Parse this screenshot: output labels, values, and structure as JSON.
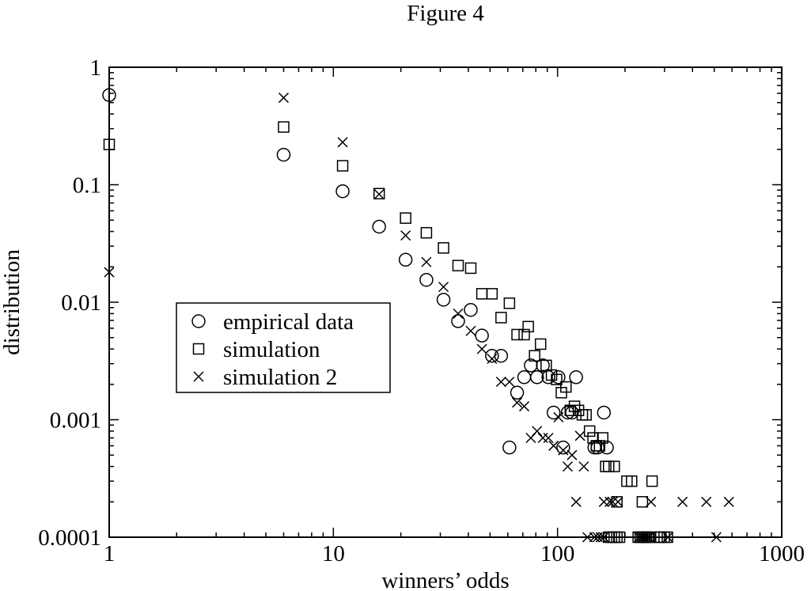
{
  "chart_data": {
    "type": "scatter",
    "title": "Figure 4",
    "xlabel": "winners’ odds",
    "ylabel": "distribution",
    "xscale": "log",
    "yscale": "log",
    "xlim": [
      1,
      1000
    ],
    "ylim": [
      0.0001,
      1
    ],
    "x_ticks": [
      {
        "value": 1,
        "label": "1"
      },
      {
        "value": 10,
        "label": "10"
      },
      {
        "value": 100,
        "label": "100"
      },
      {
        "value": 1000,
        "label": "1000"
      }
    ],
    "y_ticks": [
      {
        "value": 0.0001,
        "label": "0.0001"
      },
      {
        "value": 0.001,
        "label": "0.001"
      },
      {
        "value": 0.01,
        "label": "0.01"
      },
      {
        "value": 0.1,
        "label": "0.1"
      },
      {
        "value": 1,
        "label": "1"
      }
    ],
    "grid": false,
    "legend": {
      "placement": "center-left",
      "boxed": true
    },
    "series": [
      {
        "name": "empirical data",
        "marker": "circle",
        "points": [
          [
            1,
            0.58
          ],
          [
            6,
            0.18
          ],
          [
            11,
            0.088
          ],
          [
            16,
            0.044
          ],
          [
            21,
            0.023
          ],
          [
            26,
            0.0155
          ],
          [
            31,
            0.0105
          ],
          [
            36,
            0.0069
          ],
          [
            41,
            0.0086
          ],
          [
            46,
            0.0052
          ],
          [
            51,
            0.0035
          ],
          [
            56,
            0.0035
          ],
          [
            61,
            0.00058
          ],
          [
            66,
            0.0017
          ],
          [
            71,
            0.0023
          ],
          [
            76,
            0.0029
          ],
          [
            81,
            0.0023
          ],
          [
            86,
            0.0029
          ],
          [
            91,
            0.0023
          ],
          [
            96,
            0.00115
          ],
          [
            101,
            0.0023
          ],
          [
            106,
            0.00058
          ],
          [
            111,
            0.00115
          ],
          [
            116,
            0.00115
          ],
          [
            121,
            0.0023
          ],
          [
            146,
            0.00058
          ],
          [
            151,
            0.00058
          ],
          [
            161,
            0.00115
          ],
          [
            166,
            0.00058
          ]
        ]
      },
      {
        "name": "simulation",
        "marker": "square",
        "points": [
          [
            1,
            0.22
          ],
          [
            6,
            0.31
          ],
          [
            11,
            0.145
          ],
          [
            16,
            0.084
          ],
          [
            21,
            0.052
          ],
          [
            26,
            0.039
          ],
          [
            31,
            0.029
          ],
          [
            36,
            0.0205
          ],
          [
            41,
            0.0195
          ],
          [
            46,
            0.0118
          ],
          [
            51,
            0.0118
          ],
          [
            56,
            0.0074
          ],
          [
            61,
            0.0098
          ],
          [
            66,
            0.0053
          ],
          [
            71,
            0.0053
          ],
          [
            74,
            0.0062
          ],
          [
            79,
            0.0035
          ],
          [
            84,
            0.0044
          ],
          [
            89,
            0.0029
          ],
          [
            94,
            0.0024
          ],
          [
            99,
            0.0022
          ],
          [
            104,
            0.0017
          ],
          [
            109,
            0.0019
          ],
          [
            114,
            0.0012
          ],
          [
            119,
            0.0013
          ],
          [
            124,
            0.0012
          ],
          [
            129,
            0.0011
          ],
          [
            134,
            0.0011
          ],
          [
            139,
            0.0008
          ],
          [
            144,
            0.0007
          ],
          [
            149,
            0.0006
          ],
          [
            154,
            0.0006
          ],
          [
            159,
            0.0007
          ],
          [
            164,
            0.0004
          ],
          [
            169,
            0.0004
          ],
          [
            179,
            0.0004
          ],
          [
            184,
            0.0002
          ],
          [
            204,
            0.0003
          ],
          [
            214,
            0.0003
          ],
          [
            239,
            0.0002
          ],
          [
            264,
            0.0003
          ],
          [
            169,
            0.0001
          ],
          [
            174,
            0.0001
          ],
          [
            179,
            0.0001
          ],
          [
            184,
            0.0001
          ],
          [
            189,
            0.0001
          ],
          [
            229,
            0.0001
          ],
          [
            234,
            0.0001
          ],
          [
            239,
            0.0001
          ],
          [
            244,
            0.0001
          ],
          [
            249,
            0.0001
          ],
          [
            254,
            0.0001
          ],
          [
            259,
            0.0001
          ],
          [
            284,
            0.0001
          ],
          [
            289,
            0.0001
          ],
          [
            299,
            0.0001
          ],
          [
            309,
            0.0001
          ]
        ]
      },
      {
        "name": "simulation 2",
        "marker": "cross",
        "points": [
          [
            1,
            0.018
          ],
          [
            6,
            0.55
          ],
          [
            11,
            0.23
          ],
          [
            16,
            0.083
          ],
          [
            21,
            0.037
          ],
          [
            26,
            0.022
          ],
          [
            31,
            0.0135
          ],
          [
            36,
            0.008
          ],
          [
            41,
            0.0057
          ],
          [
            46,
            0.004
          ],
          [
            51,
            0.0033
          ],
          [
            56,
            0.0021
          ],
          [
            61,
            0.0021
          ],
          [
            66,
            0.0014
          ],
          [
            71,
            0.0013
          ],
          [
            76,
            0.0007
          ],
          [
            81,
            0.0008
          ],
          [
            86,
            0.0007
          ],
          [
            91,
            0.0007
          ],
          [
            96,
            0.0006
          ],
          [
            101,
            0.00105
          ],
          [
            106,
            0.00055
          ],
          [
            111,
            0.0004
          ],
          [
            116,
            0.0005
          ],
          [
            121,
            0.0002
          ],
          [
            126,
            0.00073
          ],
          [
            131,
            0.0004
          ],
          [
            161,
            0.0002
          ],
          [
            171,
            0.0002
          ],
          [
            176,
            0.0002
          ],
          [
            186,
            0.0002
          ],
          [
            261,
            0.0002
          ],
          [
            361,
            0.0002
          ],
          [
            461,
            0.0002
          ],
          [
            581,
            0.0002
          ],
          [
            136,
            0.0001
          ],
          [
            146,
            0.0001
          ],
          [
            151,
            0.0001
          ],
          [
            156,
            0.0001
          ],
          [
            161,
            0.0001
          ],
          [
            231,
            0.0001
          ],
          [
            236,
            0.0001
          ],
          [
            241,
            0.0001
          ],
          [
            246,
            0.0001
          ],
          [
            251,
            0.0001
          ],
          [
            256,
            0.0001
          ],
          [
            311,
            0.0001
          ],
          [
            511,
            0.0001
          ]
        ]
      }
    ]
  }
}
